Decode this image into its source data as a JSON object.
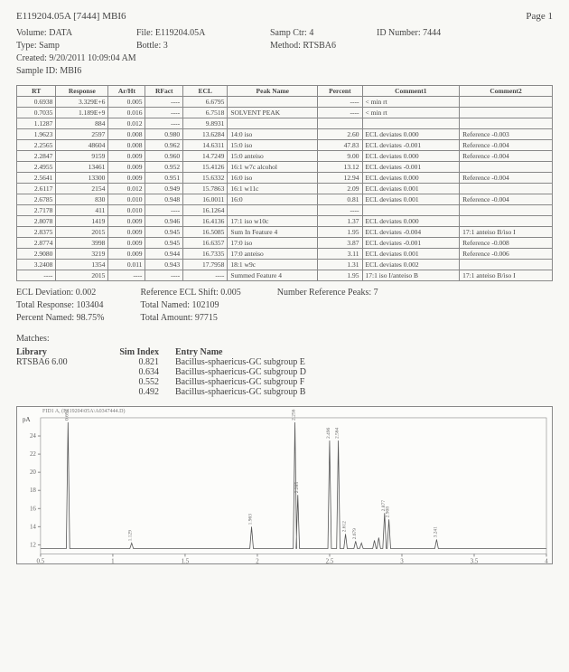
{
  "header": {
    "doc_id": "E119204.05A [7444]  MBI6",
    "page": "Page 1"
  },
  "meta": {
    "volume_lbl": "Volume:",
    "volume": "DATA",
    "file_lbl": "File:",
    "file": "E119204.05A",
    "samp_ctr_lbl": "Samp Ctr:",
    "samp_ctr": "4",
    "id_lbl": "ID Number:",
    "id": "7444",
    "type_lbl": "Type:",
    "type": "Samp",
    "bottle_lbl": "Bottle:",
    "bottle": "3",
    "method_lbl": "Method:",
    "method": "RTSBA6",
    "created_lbl": "Created:",
    "created": "9/20/2011 10:09:04 AM",
    "sample_id_lbl": "Sample ID:",
    "sample_id": "MBI6"
  },
  "table": {
    "cols": [
      "RT",
      "Response",
      "Ar/Ht",
      "RFact",
      "ECL",
      "Peak Name",
      "Percent",
      "Comment1",
      "Comment2"
    ],
    "rows": [
      [
        "0.6938",
        "3.329E+6",
        "0.005",
        "----",
        "6.6795",
        "",
        "----",
        "< min rt",
        ""
      ],
      [
        "0.7035",
        "1.189E+9",
        "0.016",
        "----",
        "6.7518",
        "SOLVENT PEAK",
        "----",
        "< min rt",
        ""
      ],
      [
        "1.1287",
        "884",
        "0.012",
        "----",
        "9.8931",
        "",
        "",
        "",
        ""
      ],
      [
        "1.9623",
        "2597",
        "0.008",
        "0.980",
        "13.6284",
        "14:0 iso",
        "2.60",
        "ECL deviates  0.000",
        "Reference -0.003"
      ],
      [
        "2.2565",
        "48604",
        "0.008",
        "0.962",
        "14.6311",
        "15:0 iso",
        "47.83",
        "ECL deviates -0.001",
        "Reference -0.004"
      ],
      [
        "2.2847",
        "9159",
        "0.009",
        "0.960",
        "14.7249",
        "15:0 anteiso",
        "9.00",
        "ECL deviates  0.000",
        "Reference -0.004"
      ],
      [
        "2.4955",
        "13461",
        "0.009",
        "0.952",
        "15.4126",
        "16:1 w7c alcohol",
        "13.12",
        "ECL deviates -0.001",
        ""
      ],
      [
        "2.5641",
        "13300",
        "0.009",
        "0.951",
        "15.6332",
        "16:0 iso",
        "12.94",
        "ECL deviates  0.000",
        "Reference -0.004"
      ],
      [
        "2.6117",
        "2154",
        "0.012",
        "0.949",
        "15.7863",
        "16:1 w11c",
        "2.09",
        "ECL deviates  0.001",
        ""
      ],
      [
        "2.6785",
        "830",
        "0.010",
        "0.948",
        "16.0011",
        "16:0",
        "0.81",
        "ECL deviates  0.001",
        "Reference -0.004"
      ],
      [
        "2.7178",
        "411",
        "0.010",
        "----",
        "16.1264",
        "",
        "----",
        "",
        ""
      ],
      [
        "2.8078",
        "1419",
        "0.009",
        "0.946",
        "16.4136",
        "17:1 iso w10c",
        "1.37",
        "ECL deviates  0.000",
        ""
      ],
      [
        "2.8375",
        "2015",
        "0.009",
        "0.945",
        "16.5085",
        "Sum In Feature 4",
        "1.95",
        "ECL deviates -0.004",
        "17:1 anteiso B/iso I"
      ],
      [
        "2.8774",
        "3998",
        "0.009",
        "0.945",
        "16.6357",
        "17:0 iso",
        "3.87",
        "ECL deviates -0.001",
        "Reference -0.008"
      ],
      [
        "2.9080",
        "3219",
        "0.009",
        "0.944",
        "16.7335",
        "17:0 anteiso",
        "3.11",
        "ECL deviates  0.001",
        "Reference -0.006"
      ],
      [
        "3.2408",
        "1354",
        "0.011",
        "0.943",
        "17.7958",
        "18:1 w9c",
        "1.31",
        "ECL deviates  0.002",
        ""
      ],
      [
        "----",
        "2015",
        "----",
        "----",
        "----",
        "Summed Feature 4",
        "1.95",
        "17:1 iso I/anteiso B",
        "17:1 anteiso B/iso I"
      ]
    ]
  },
  "summary": {
    "ecl_dev_lbl": "ECL Deviation:",
    "ecl_dev": "0.002",
    "total_resp_lbl": "Total Response:",
    "total_resp": "103404",
    "pct_named_lbl": "Percent Named:",
    "pct_named": "98.75%",
    "ref_shift_lbl": "Reference ECL Shift:",
    "ref_shift": "0.005",
    "total_named_lbl": "Total Named:",
    "total_named": "102109",
    "total_amt_lbl": "Total Amount:",
    "total_amt": "97715",
    "num_ref_lbl": "Number Reference Peaks:",
    "num_ref": "7"
  },
  "matches": {
    "title": "Matches:",
    "hdr0": "Library",
    "hdr1": "Sim Index",
    "hdr2": "Entry Name",
    "lib": "RTSBA6 6.00",
    "rows": [
      {
        "si": "0.821",
        "name": "Bacillus-sphaericus-GC subgroup E"
      },
      {
        "si": "0.634",
        "name": "Bacillus-sphaericus-GC subgroup D"
      },
      {
        "si": "0.552",
        "name": "Bacillus-sphaericus-GC subgroup F"
      },
      {
        "si": "0.492",
        "name": "Bacillus-sphaericus-GC subgroup B"
      }
    ]
  },
  "chart": {
    "title": "FID1 A,  (E119204\\05A\\A0347444.D)",
    "y_label": "pA",
    "xlim": [
      0.5,
      4.0
    ],
    "ylim": [
      11,
      26
    ],
    "yticks": [
      12,
      14,
      16,
      18,
      20,
      22,
      24
    ],
    "xticks": [
      0.5,
      1,
      1.5,
      2,
      2.5,
      3,
      3.5,
      4
    ],
    "baseline": 11.6,
    "peaks": [
      {
        "rt": 0.69,
        "h": 25.5,
        "label": "0.694"
      },
      {
        "rt": 1.13,
        "h": 12.2,
        "label": "1.129"
      },
      {
        "rt": 1.96,
        "h": 14.0,
        "label": "1.963"
      },
      {
        "rt": 2.26,
        "h": 25.5,
        "label": "2.256"
      },
      {
        "rt": 2.28,
        "h": 17.5,
        "label": "2.285"
      },
      {
        "rt": 2.5,
        "h": 23.5,
        "label": "2.496"
      },
      {
        "rt": 2.56,
        "h": 23.5,
        "label": "2.564"
      },
      {
        "rt": 2.61,
        "h": 13.2,
        "label": "2.612"
      },
      {
        "rt": 2.68,
        "h": 12.4,
        "label": "2.679"
      },
      {
        "rt": 2.72,
        "h": 12.2,
        "label": ""
      },
      {
        "rt": 2.81,
        "h": 12.5,
        "label": ""
      },
      {
        "rt": 2.84,
        "h": 12.8,
        "label": ""
      },
      {
        "rt": 2.88,
        "h": 15.5,
        "label": "2.877"
      },
      {
        "rt": 2.91,
        "h": 14.8,
        "label": "2.908"
      },
      {
        "rt": 3.24,
        "h": 12.6,
        "label": "3.241"
      }
    ],
    "line_color": "#555555",
    "bg_color": "#fcfcfa",
    "axis_color": "#888888"
  }
}
